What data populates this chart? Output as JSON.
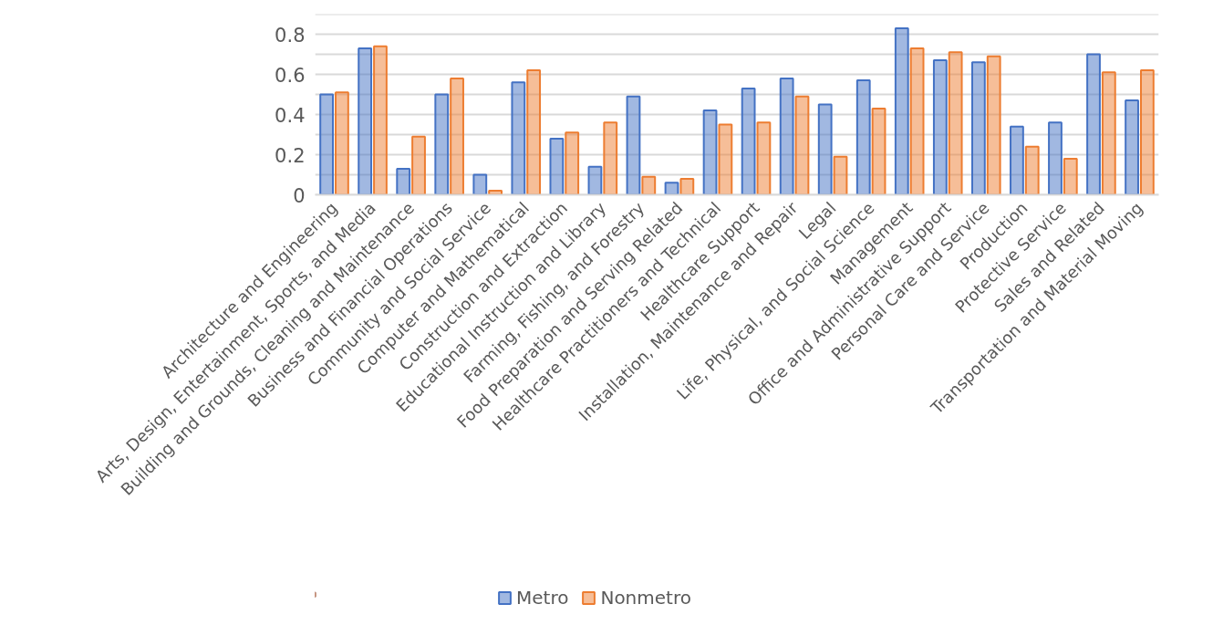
{
  "chart_data": {
    "type": "bar",
    "categories": [
      "Architecture and Engineering",
      "Arts, Design, Entertainment, Sports, and Media",
      "Building and Grounds, Cleaning and Maintenance",
      "Business and Financial Operations",
      "Community and Social Service",
      "Computer and Mathematical",
      "Construction and Extraction",
      "Educational Instruction and Library",
      "Farming, Fishing, and Forestry",
      "Food Preparation and Serving Related",
      "Healthcare Practitioners and Technical",
      "Healthcare Support",
      "Installation, Maintenance and Repair",
      "Legal",
      "Life, Physical, and Social Science",
      "Management",
      "Office and Administrative Support",
      "Personal Care and Service",
      "Production",
      "Protective Service",
      "Sales and Related",
      "Transportation and Material Moving"
    ],
    "series": [
      {
        "name": "Metro",
        "color": "#4472c4",
        "values": [
          0.5,
          0.73,
          0.13,
          0.5,
          0.1,
          0.56,
          0.28,
          0.14,
          0.49,
          0.06,
          0.42,
          0.53,
          0.58,
          0.45,
          0.57,
          0.83,
          0.67,
          0.66,
          0.34,
          0.36,
          0.7,
          0.47
        ]
      },
      {
        "name": "Nonmetro",
        "color": "#ed7d31",
        "values": [
          0.51,
          0.74,
          0.29,
          0.58,
          0.02,
          0.62,
          0.31,
          0.36,
          0.09,
          0.08,
          0.35,
          0.36,
          0.49,
          0.19,
          0.43,
          0.73,
          0.71,
          0.69,
          0.24,
          0.18,
          0.61,
          0.62
        ]
      }
    ],
    "ylim": [
      0,
      0.9
    ],
    "yticks": [
      0,
      {
        "value": 0.1,
        "label": null
      },
      0.2,
      {
        "value": 0.3,
        "label": null
      },
      0.4,
      {
        "value": 0.5,
        "label": null
      },
      0.6,
      {
        "value": 0.7,
        "label": null
      },
      0.8,
      {
        "value": 0.9,
        "label": null
      }
    ],
    "grid": "y",
    "legend": "bottom"
  }
}
